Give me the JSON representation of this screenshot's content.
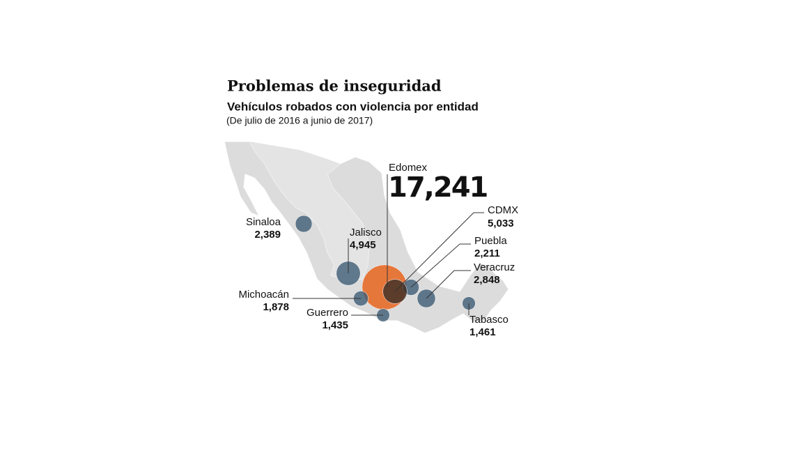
{
  "chart_data": {
    "type": "bubble",
    "title": "Problemas de inseguridad",
    "subtitle": "Vehículos robados con violencia por entidad",
    "note": "(De julio de 2016 a junio de 2017)",
    "categories": [
      "Sinaloa",
      "Jalisco",
      "Edomex",
      "CDMX",
      "Puebla",
      "Veracruz",
      "Michoacán",
      "Guerrero",
      "Tabasco"
    ],
    "values": [
      2389,
      4945,
      17241,
      5033,
      2211,
      2848,
      1878,
      1435,
      1461
    ],
    "value_labels": [
      "2,389",
      "4,945",
      "17,241",
      "5,033",
      "2,211",
      "2,848",
      "1,878",
      "1,435",
      "1,461"
    ],
    "colors": [
      "#3f5d75",
      "#3f5d75",
      "#e8651e",
      "#3a2e28",
      "#3f5d75",
      "#3f5d75",
      "#3f5d75",
      "#3f5d75",
      "#3f5d75"
    ]
  }
}
